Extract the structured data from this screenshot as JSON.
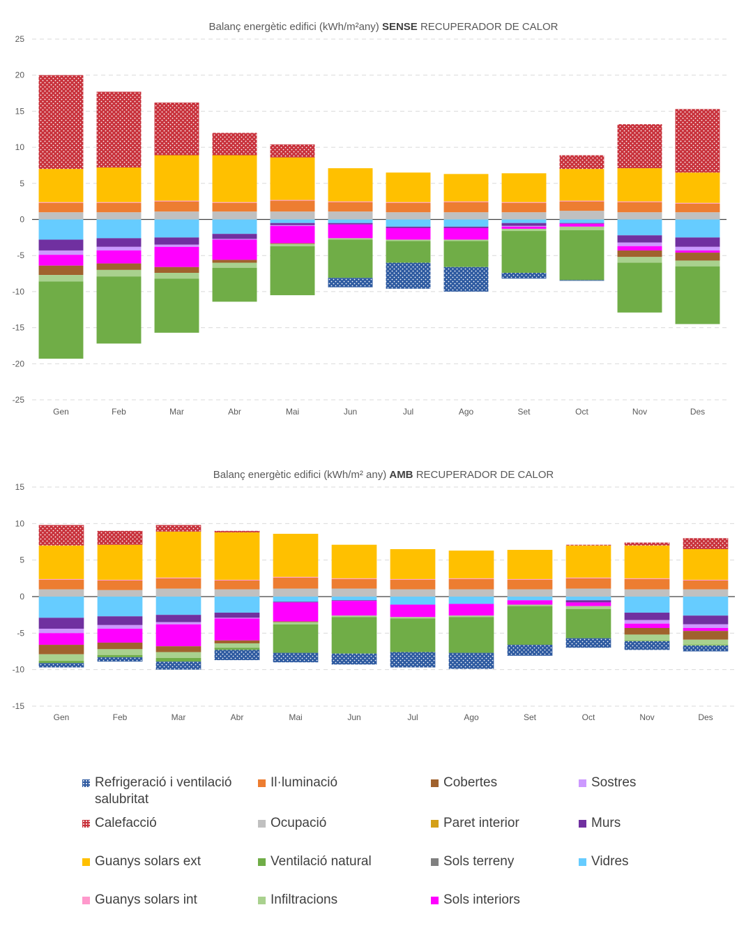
{
  "colors": {
    "refrigeracio": "#2e5aa0",
    "calefaccio": "#c8323c",
    "guanys_ext": "#ffc000",
    "guanys_int": "#ff99cc",
    "illuminacio": "#ed7d31",
    "ocupacio": "#c0c0c0",
    "ventilacio": "#70ad47",
    "infiltracions": "#a9d18e",
    "cobertes": "#a0622d",
    "paret_interior": "#d4a017",
    "sols_terreny": "#808080",
    "sols_interiors": "#ff00ff",
    "sostres": "#cc99ff",
    "murs": "#7030a0",
    "vidres": "#66ccff"
  },
  "chart_data": [
    {
      "type": "bar",
      "stacked": true,
      "title_prefix": "Balanç energètic edifici (kWh/m²any) ",
      "title_bold": "SENSE",
      "title_suffix": " RECUPERADOR DE CALOR",
      "ylim": [
        -25,
        25
      ],
      "yticks": [
        25,
        20,
        15,
        10,
        5,
        0,
        -5,
        -10,
        -15,
        -20,
        -25
      ],
      "grid": true,
      "categories": [
        "Gen",
        "Feb",
        "Mar",
        "Abr",
        "Mai",
        "Jun",
        "Jul",
        "Ago",
        "Set",
        "Oct",
        "Nov",
        "Des"
      ],
      "series": [
        {
          "name": "Ocupació",
          "key": "ocupacio",
          "values": [
            1.0,
            1.0,
            1.1,
            1.1,
            1.1,
            1.1,
            1.0,
            1.0,
            1.0,
            1.2,
            1.0,
            1.0
          ]
        },
        {
          "name": "Il·luminació",
          "key": "illuminacio",
          "values": [
            1.3,
            1.3,
            1.4,
            1.2,
            1.5,
            1.3,
            1.3,
            1.4,
            1.3,
            1.3,
            1.4,
            1.2
          ]
        },
        {
          "name": "Guanys solars int",
          "key": "guanys_int",
          "values": [
            0.1,
            0.1,
            0.1,
            0.1,
            0.1,
            0.1,
            0.1,
            0.1,
            0.1,
            0.1,
            0.1,
            0.1
          ]
        },
        {
          "name": "Guanys solars ext",
          "key": "guanys_ext",
          "values": [
            4.6,
            4.8,
            6.3,
            6.5,
            5.9,
            4.6,
            4.1,
            3.8,
            4.0,
            4.4,
            4.6,
            4.2
          ]
        },
        {
          "name": "Calefacció",
          "key": "calefaccio",
          "values": [
            13.0,
            10.5,
            7.3,
            3.1,
            1.8,
            0,
            0,
            0,
            0,
            1.9,
            6.1,
            8.8
          ]
        },
        {
          "name": "Vidres",
          "key": "vidres",
          "values": [
            -2.8,
            -2.6,
            -2.5,
            -2.0,
            -0.5,
            -0.5,
            -1.0,
            -1.0,
            -0.5,
            -0.5,
            -2.2,
            -2.5
          ]
        },
        {
          "name": "Murs",
          "key": "murs",
          "values": [
            -1.5,
            -1.2,
            -1.0,
            -0.7,
            -0.3,
            -0.2,
            -0.2,
            -0.2,
            -0.4,
            -0.1,
            -1.0,
            -1.3
          ]
        },
        {
          "name": "Sostres",
          "key": "sostres",
          "values": [
            -0.6,
            -0.5,
            -0.3,
            -0.1,
            -0.1,
            0,
            0,
            0,
            -0.1,
            0,
            -0.5,
            -0.5
          ]
        },
        {
          "name": "Sols interiors",
          "key": "sols_interiors",
          "values": [
            -1.5,
            -1.8,
            -2.8,
            -2.8,
            -2.4,
            -1.9,
            -1.6,
            -1.6,
            -0.3,
            -0.4,
            -0.6,
            -0.3
          ]
        },
        {
          "name": "Cobertes",
          "key": "cobertes",
          "values": [
            -1.3,
            -0.9,
            -0.8,
            -0.4,
            -0.1,
            0,
            0,
            0,
            0,
            0,
            -0.9,
            -1.1
          ]
        },
        {
          "name": "Infiltracions",
          "key": "infiltracions",
          "values": [
            -0.9,
            -0.9,
            -0.8,
            -0.7,
            -0.3,
            -0.2,
            -0.2,
            -0.2,
            -0.3,
            -0.5,
            -0.8,
            -0.8
          ]
        },
        {
          "name": "Ventilació natural",
          "key": "ventilacio",
          "values": [
            -10.7,
            -9.3,
            -7.5,
            -4.7,
            -6.8,
            -5.3,
            -3.0,
            -3.6,
            -5.8,
            -6.9,
            -6.9,
            -8.0
          ]
        },
        {
          "name": "Refrigeració i ventilació salubritat",
          "key": "refrigeracio",
          "values": [
            0,
            0,
            0,
            0,
            0,
            -1.3,
            -3.6,
            -3.4,
            -0.8,
            -0.1,
            0,
            0
          ]
        }
      ]
    },
    {
      "type": "bar",
      "stacked": true,
      "title_prefix": "Balanç energètic edifici (kWh/m² any) ",
      "title_bold": "AMB",
      "title_suffix": " RECUPERADOR DE CALOR",
      "ylim": [
        -15,
        15
      ],
      "yticks": [
        15,
        10,
        5,
        0,
        -5,
        -10,
        -15
      ],
      "grid": true,
      "categories": [
        "Gen",
        "Feb",
        "Mar",
        "Abr",
        "Mai",
        "Jun",
        "Jul",
        "Ago",
        "Set",
        "Oct",
        "Nov",
        "Des"
      ],
      "series": [
        {
          "name": "Ocupació",
          "key": "ocupacio",
          "values": [
            1.0,
            0.9,
            1.1,
            1.0,
            1.1,
            1.1,
            1.0,
            1.0,
            1.0,
            1.1,
            1.0,
            1.0
          ]
        },
        {
          "name": "Il·luminació",
          "key": "illuminacio",
          "values": [
            1.3,
            1.3,
            1.4,
            1.2,
            1.5,
            1.3,
            1.3,
            1.4,
            1.3,
            1.4,
            1.4,
            1.2
          ]
        },
        {
          "name": "Guanys solars int",
          "key": "guanys_int",
          "values": [
            0.1,
            0.1,
            0.1,
            0.1,
            0.1,
            0.1,
            0.1,
            0.1,
            0.1,
            0.1,
            0.1,
            0.1
          ]
        },
        {
          "name": "Guanys solars ext",
          "key": "guanys_ext",
          "values": [
            4.6,
            4.8,
            6.3,
            6.5,
            5.9,
            4.6,
            4.1,
            3.8,
            4.0,
            4.4,
            4.5,
            4.2
          ]
        },
        {
          "name": "Calefacció",
          "key": "calefaccio",
          "values": [
            2.8,
            1.9,
            0.9,
            0.2,
            0,
            0,
            0,
            0,
            0,
            0.1,
            0.4,
            1.5
          ]
        },
        {
          "name": "Vidres",
          "key": "vidres",
          "values": [
            -2.9,
            -2.7,
            -2.5,
            -2.2,
            -0.7,
            -0.5,
            -1.1,
            -1.0,
            -0.5,
            -0.5,
            -2.2,
            -2.6
          ]
        },
        {
          "name": "Murs",
          "key": "murs",
          "values": [
            -1.5,
            -1.2,
            -1.0,
            -0.7,
            -0.1,
            -0.1,
            0,
            0,
            0,
            -0.3,
            -1.0,
            -1.2
          ]
        },
        {
          "name": "Sostres",
          "key": "sostres",
          "values": [
            -0.6,
            -0.5,
            -0.3,
            -0.1,
            0,
            0,
            0,
            0,
            0,
            0,
            -0.5,
            -0.5
          ]
        },
        {
          "name": "Sols interiors",
          "key": "sols_interiors",
          "values": [
            -1.6,
            -1.9,
            -3.0,
            -3.0,
            -2.6,
            -2.0,
            -1.7,
            -1.6,
            -0.6,
            -0.5,
            -0.6,
            -0.4
          ]
        },
        {
          "name": "Cobertes",
          "key": "cobertes",
          "values": [
            -1.3,
            -0.9,
            -0.8,
            -0.4,
            -0.1,
            0,
            0,
            0,
            0,
            0,
            -0.9,
            -1.2
          ]
        },
        {
          "name": "Infiltracions",
          "key": "infiltracions",
          "values": [
            -0.9,
            -0.8,
            -0.8,
            -0.6,
            -0.3,
            -0.2,
            -0.2,
            -0.2,
            -0.2,
            -0.4,
            -0.8,
            -0.7
          ]
        },
        {
          "name": "Ventilació natural",
          "key": "ventilacio",
          "values": [
            -0.3,
            -0.3,
            -0.5,
            -0.3,
            -3.9,
            -5.0,
            -4.6,
            -4.9,
            -5.3,
            -4.0,
            -0.1,
            -0.1
          ]
        },
        {
          "name": "Refrigeració i ventilació salubritat",
          "key": "refrigeracio",
          "values": [
            -0.6,
            -0.6,
            -1.1,
            -1.4,
            -1.3,
            -1.5,
            -2.1,
            -2.2,
            -1.5,
            -1.3,
            -1.2,
            -0.8
          ]
        }
      ]
    }
  ],
  "legend": [
    {
      "label": "Refrigeració i ventilació salubritat",
      "key": "refrigeracio",
      "pattern": "dots"
    },
    {
      "label": "Il·luminació",
      "key": "illuminacio",
      "pattern": "solid"
    },
    {
      "label": "Cobertes",
      "key": "cobertes",
      "pattern": "solid"
    },
    {
      "label": "Sostres",
      "key": "sostres",
      "pattern": "solid"
    },
    {
      "label": "Calefacció",
      "key": "calefaccio",
      "pattern": "dots"
    },
    {
      "label": "Ocupació",
      "key": "ocupacio",
      "pattern": "solid"
    },
    {
      "label": "Paret interior",
      "key": "paret_interior",
      "pattern": "solid"
    },
    {
      "label": "Murs",
      "key": "murs",
      "pattern": "solid"
    },
    {
      "label": "Guanys solars ext",
      "key": "guanys_ext",
      "pattern": "solid"
    },
    {
      "label": "Ventilació natural",
      "key": "ventilacio",
      "pattern": "solid"
    },
    {
      "label": "Sols terreny",
      "key": "sols_terreny",
      "pattern": "solid"
    },
    {
      "label": "Vidres",
      "key": "vidres",
      "pattern": "solid"
    },
    {
      "label": "Guanys solars int",
      "key": "guanys_int",
      "pattern": "solid"
    },
    {
      "label": "Infiltracions",
      "key": "infiltracions",
      "pattern": "solid"
    },
    {
      "label": "Sols interiors",
      "key": "sols_interiors",
      "pattern": "solid"
    }
  ]
}
